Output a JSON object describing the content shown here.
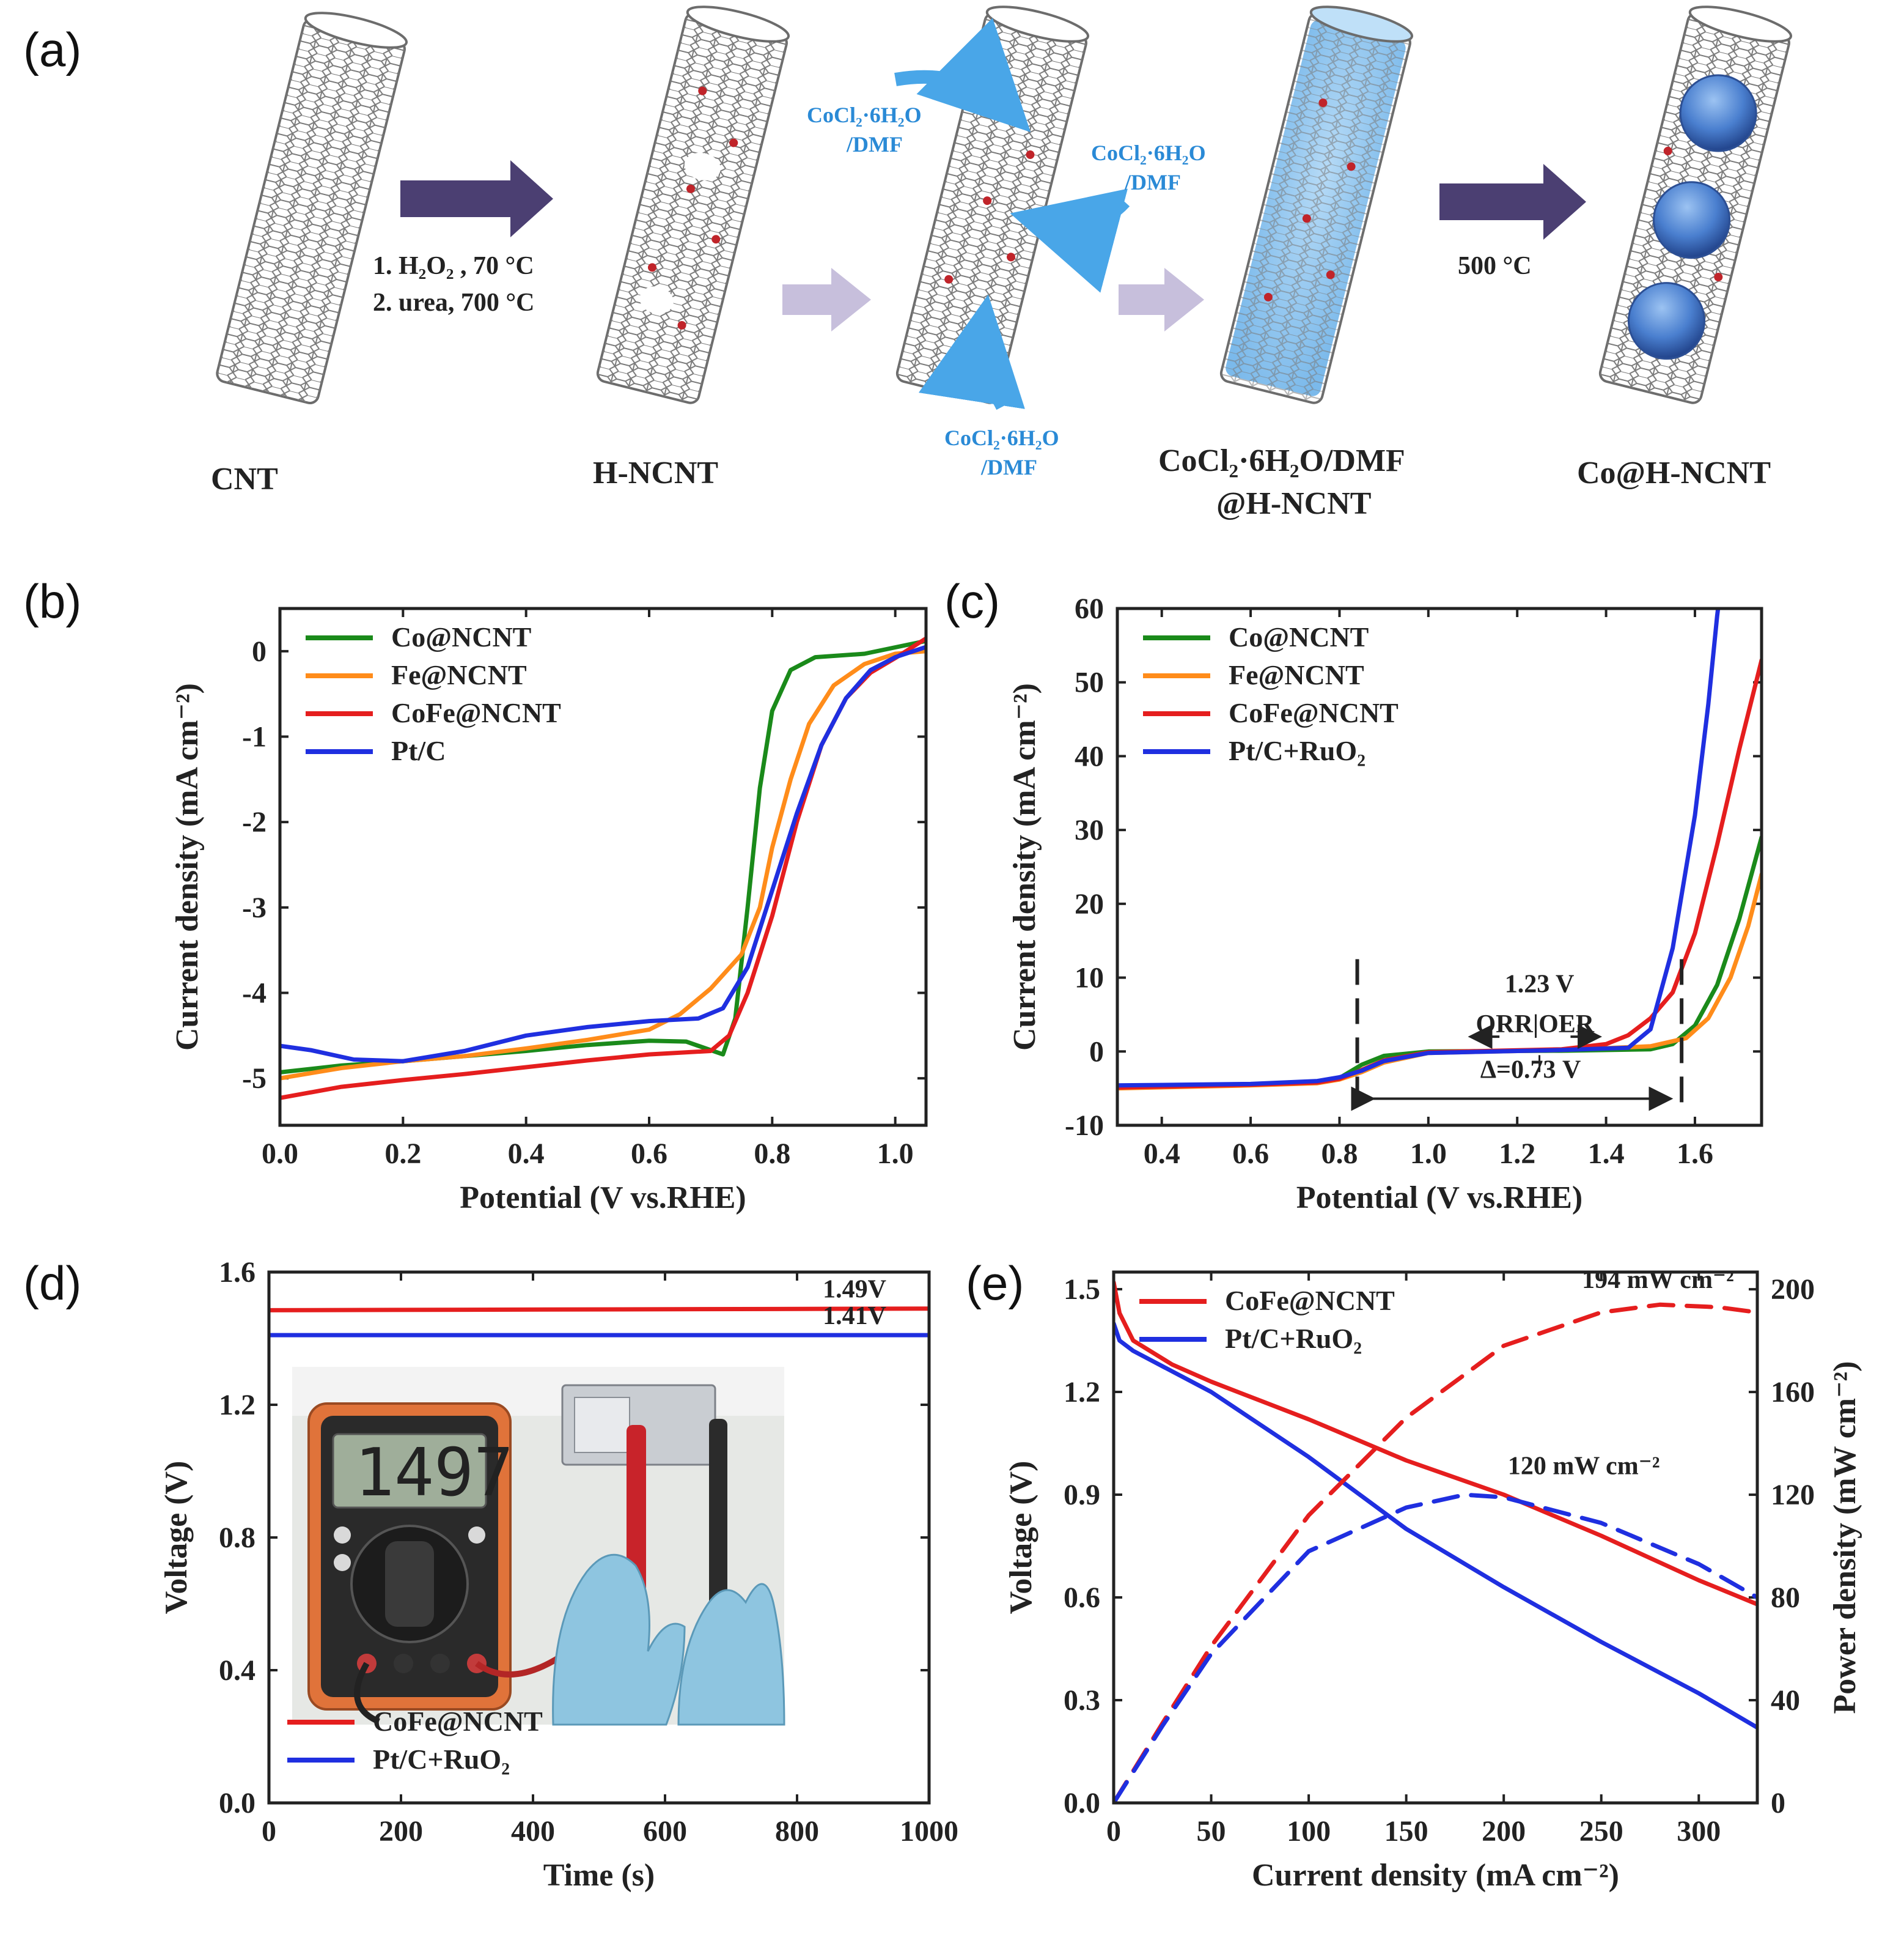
{
  "panels": {
    "a": {
      "label": "(a)"
    },
    "b": {
      "label": "(b)"
    },
    "c": {
      "label": "(c)"
    },
    "d": {
      "label": "(d)"
    },
    "e": {
      "label": "(e)"
    }
  },
  "schematic": {
    "stages": [
      "CNT",
      "H-NCNT",
      "CoCl₂·6H₂O/DMF",
      "@H-NCNT",
      "Co@H-NCNT"
    ],
    "step1_conditions": [
      "1. H₂O₂ , 70 °C",
      "2. urea, 700 °C"
    ],
    "step3_condition": "500 °C",
    "reagent_line1": "CoCl₂·6H₂O",
    "reagent_line2": "/DMF"
  },
  "photo": {
    "meter_reading": "1497"
  },
  "colors": {
    "green": "#1a8a1a",
    "orange": "#ff8c1a",
    "red": "#e51e1e",
    "blue": "#1f2fe0",
    "arrow_dark": "#4b3f72",
    "arrow_light": "#c7bfdc",
    "reagent_blue": "#2a8ad6"
  },
  "chart_data": [
    {
      "id": "b",
      "type": "line",
      "xlabel": "Potential (V vs.RHE)",
      "ylabel": "Current density (mA cm⁻²)",
      "xlim": [
        0,
        1.05
      ],
      "ylim": [
        -5.55,
        0.5
      ],
      "xticks": [
        0,
        0.2,
        0.4,
        0.6,
        0.8,
        1.0
      ],
      "xtick_labels": [
        "0.0",
        "0.2",
        "0.4",
        "0.6",
        "0.8",
        "1.0"
      ],
      "yticks": [
        0,
        -1,
        -2,
        -3,
        -4,
        -5
      ],
      "ytick_labels": [
        "0",
        "-1",
        "-2",
        "-3",
        "-4",
        "-5"
      ],
      "legend_position": "top-left",
      "series": [
        {
          "name": "Co@NCNT",
          "color": "#1a8a1a",
          "points": [
            [
              0,
              -4.93
            ],
            [
              0.1,
              -4.85
            ],
            [
              0.2,
              -4.8
            ],
            [
              0.3,
              -4.74
            ],
            [
              0.4,
              -4.68
            ],
            [
              0.5,
              -4.61
            ],
            [
              0.6,
              -4.56
            ],
            [
              0.66,
              -4.57
            ],
            [
              0.72,
              -4.72
            ],
            [
              0.74,
              -4.3
            ],
            [
              0.76,
              -3.0
            ],
            [
              0.78,
              -1.6
            ],
            [
              0.8,
              -0.7
            ],
            [
              0.83,
              -0.22
            ],
            [
              0.87,
              -0.07
            ],
            [
              0.95,
              -0.03
            ],
            [
              1.05,
              0.12
            ]
          ]
        },
        {
          "name": "Fe@NCNT",
          "color": "#ff8c1a",
          "points": [
            [
              0,
              -5.0
            ],
            [
              0.1,
              -4.88
            ],
            [
              0.2,
              -4.8
            ],
            [
              0.3,
              -4.74
            ],
            [
              0.4,
              -4.65
            ],
            [
              0.5,
              -4.55
            ],
            [
              0.6,
              -4.43
            ],
            [
              0.65,
              -4.25
            ],
            [
              0.7,
              -3.95
            ],
            [
              0.75,
              -3.55
            ],
            [
              0.78,
              -3.0
            ],
            [
              0.8,
              -2.3
            ],
            [
              0.83,
              -1.5
            ],
            [
              0.86,
              -0.85
            ],
            [
              0.9,
              -0.4
            ],
            [
              0.95,
              -0.15
            ],
            [
              1.0,
              -0.03
            ],
            [
              1.05,
              0.0
            ]
          ]
        },
        {
          "name": "CoFe@NCNT",
          "color": "#e51e1e",
          "points": [
            [
              0,
              -5.23
            ],
            [
              0.1,
              -5.1
            ],
            [
              0.2,
              -5.02
            ],
            [
              0.3,
              -4.95
            ],
            [
              0.4,
              -4.87
            ],
            [
              0.5,
              -4.79
            ],
            [
              0.6,
              -4.72
            ],
            [
              0.7,
              -4.68
            ],
            [
              0.73,
              -4.5
            ],
            [
              0.76,
              -4.0
            ],
            [
              0.8,
              -3.1
            ],
            [
              0.84,
              -2.0
            ],
            [
              0.88,
              -1.1
            ],
            [
              0.92,
              -0.55
            ],
            [
              0.96,
              -0.25
            ],
            [
              1.0,
              -0.08
            ],
            [
              1.05,
              0.15
            ]
          ]
        },
        {
          "name": "Pt/C",
          "color": "#1f2fe0",
          "points": [
            [
              0,
              -4.62
            ],
            [
              0.05,
              -4.67
            ],
            [
              0.12,
              -4.78
            ],
            [
              0.2,
              -4.8
            ],
            [
              0.3,
              -4.68
            ],
            [
              0.4,
              -4.5
            ],
            [
              0.5,
              -4.4
            ],
            [
              0.6,
              -4.33
            ],
            [
              0.68,
              -4.3
            ],
            [
              0.72,
              -4.18
            ],
            [
              0.76,
              -3.7
            ],
            [
              0.8,
              -2.8
            ],
            [
              0.84,
              -1.9
            ],
            [
              0.88,
              -1.1
            ],
            [
              0.92,
              -0.55
            ],
            [
              0.96,
              -0.22
            ],
            [
              1.0,
              -0.07
            ],
            [
              1.05,
              0.05
            ]
          ]
        }
      ]
    },
    {
      "id": "c",
      "type": "line",
      "xlabel": "Potential (V vs.RHE)",
      "ylabel": "Current density (mA cm⁻²)",
      "xlim": [
        0.3,
        1.75
      ],
      "ylim": [
        -10,
        60
      ],
      "xticks": [
        0.4,
        0.6,
        0.8,
        1.0,
        1.2,
        1.4,
        1.6
      ],
      "xtick_labels": [
        "0.4",
        "0.6",
        "0.8",
        "1.0",
        "1.2",
        "1.4",
        "1.6"
      ],
      "yticks": [
        -10,
        0,
        10,
        20,
        30,
        40,
        50,
        60
      ],
      "ytick_labels": [
        "-10",
        "0",
        "10",
        "20",
        "30",
        "40",
        "50",
        "60"
      ],
      "legend_position": "top-left",
      "annotations": {
        "gap_label": "Δ=0.73 V",
        "eq_potential": "1.23 V",
        "orr_oer": "ORR|OER",
        "dashed_x": [
          0.84,
          1.57
        ]
      },
      "series": [
        {
          "name": "Co@NCNT",
          "color": "#1a8a1a",
          "points": [
            [
              0.3,
              -4.8
            ],
            [
              0.6,
              -4.5
            ],
            [
              0.75,
              -4.2
            ],
            [
              0.8,
              -3.6
            ],
            [
              0.85,
              -1.8
            ],
            [
              0.9,
              -0.6
            ],
            [
              1.0,
              0
            ],
            [
              1.3,
              0.1
            ],
            [
              1.5,
              0.3
            ],
            [
              1.55,
              1.0
            ],
            [
              1.6,
              3.5
            ],
            [
              1.65,
              9
            ],
            [
              1.7,
              18
            ],
            [
              1.75,
              29
            ]
          ]
        },
        {
          "name": "Fe@NCNT",
          "color": "#ff8c1a",
          "points": [
            [
              0.3,
              -5.0
            ],
            [
              0.6,
              -4.6
            ],
            [
              0.75,
              -4.3
            ],
            [
              0.8,
              -3.8
            ],
            [
              0.85,
              -2.8
            ],
            [
              0.9,
              -1.5
            ],
            [
              1.0,
              -0.2
            ],
            [
              1.3,
              0.2
            ],
            [
              1.5,
              0.7
            ],
            [
              1.58,
              1.8
            ],
            [
              1.63,
              4.5
            ],
            [
              1.68,
              10
            ],
            [
              1.72,
              17
            ],
            [
              1.75,
              24
            ]
          ]
        },
        {
          "name": "CoFe@NCNT",
          "color": "#e51e1e",
          "points": [
            [
              0.3,
              -4.9
            ],
            [
              0.6,
              -4.5
            ],
            [
              0.75,
              -4.2
            ],
            [
              0.8,
              -3.7
            ],
            [
              0.85,
              -2.5
            ],
            [
              0.9,
              -1.2
            ],
            [
              1.0,
              -0.1
            ],
            [
              1.3,
              0.3
            ],
            [
              1.4,
              1.0
            ],
            [
              1.45,
              2.2
            ],
            [
              1.5,
              4.5
            ],
            [
              1.55,
              8
            ],
            [
              1.6,
              16
            ],
            [
              1.65,
              28
            ],
            [
              1.7,
              41
            ],
            [
              1.75,
              53
            ]
          ]
        },
        {
          "name": "Pt/C+RuO₂",
          "color": "#1f2fe0",
          "points": [
            [
              0.3,
              -4.6
            ],
            [
              0.6,
              -4.4
            ],
            [
              0.75,
              -4.0
            ],
            [
              0.8,
              -3.5
            ],
            [
              0.85,
              -2.6
            ],
            [
              0.9,
              -1.3
            ],
            [
              1.0,
              -0.2
            ],
            [
              1.3,
              0.2
            ],
            [
              1.45,
              0.5
            ],
            [
              1.5,
              3.0
            ],
            [
              1.55,
              14
            ],
            [
              1.6,
              32
            ],
            [
              1.63,
              47
            ],
            [
              1.65,
              59
            ],
            [
              1.652,
              60
            ]
          ]
        }
      ]
    },
    {
      "id": "d",
      "type": "line",
      "xlabel": "Time (s)",
      "ylabel": "Voltage (V)",
      "xlim": [
        0,
        1000
      ],
      "ylim": [
        0,
        1.6
      ],
      "xticks": [
        0,
        200,
        400,
        600,
        800,
        1000
      ],
      "xtick_labels": [
        "0",
        "200",
        "400",
        "600",
        "800",
        "1000"
      ],
      "yticks": [
        0,
        0.4,
        0.8,
        1.2,
        1.6
      ],
      "ytick_labels": [
        "0.0",
        "0.4",
        "0.8",
        "1.2",
        "1.6"
      ],
      "legend_position": "bottom-left",
      "series": [
        {
          "name": "CoFe@NCNT",
          "color": "#e51e1e",
          "end_label": "1.49V",
          "points": [
            [
              0,
              1.485
            ],
            [
              1000,
              1.49
            ]
          ]
        },
        {
          "name": "Pt/C+RuO₂",
          "color": "#1f2fe0",
          "end_label": "1.41V",
          "points": [
            [
              0,
              1.41
            ],
            [
              1000,
              1.41
            ]
          ]
        }
      ]
    },
    {
      "id": "e",
      "type": "line",
      "xlabel": "Current density (mA cm⁻²)",
      "ylabel": "Voltage (V)",
      "y2label": "Power density (mW cm⁻²)",
      "xlim": [
        0,
        330
      ],
      "ylim": [
        0,
        1.55
      ],
      "y2lim": [
        0,
        206.7
      ],
      "xticks": [
        0,
        50,
        100,
        150,
        200,
        250,
        300
      ],
      "xtick_labels": [
        "0",
        "50",
        "100",
        "150",
        "200",
        "250",
        "300"
      ],
      "yticks": [
        0,
        0.3,
        0.6,
        0.9,
        1.2,
        1.5
      ],
      "ytick_labels": [
        "0.0",
        "0.3",
        "0.6",
        "0.9",
        "1.2",
        "1.5"
      ],
      "y2ticks": [
        0,
        40,
        80,
        120,
        160,
        200
      ],
      "y2tick_labels": [
        "0",
        "40",
        "80",
        "120",
        "160",
        "200"
      ],
      "legend_position": "top-left",
      "annotations": {
        "peak_red": "194 mW cm⁻²",
        "peak_blue": "120 mW cm⁻²"
      },
      "series": [
        {
          "name": "CoFe@NCNT",
          "color": "#e51e1e",
          "style": "solid",
          "points": [
            [
              0,
              1.52
            ],
            [
              3,
              1.43
            ],
            [
              10,
              1.35
            ],
            [
              30,
              1.28
            ],
            [
              50,
              1.23
            ],
            [
              100,
              1.12
            ],
            [
              150,
              1.0
            ],
            [
              200,
              0.9
            ],
            [
              250,
              0.78
            ],
            [
              300,
              0.65
            ],
            [
              330,
              0.58
            ]
          ]
        },
        {
          "name": "Pt/C+RuO₂",
          "color": "#1f2fe0",
          "style": "solid",
          "points": [
            [
              0,
              1.4
            ],
            [
              3,
              1.35
            ],
            [
              10,
              1.32
            ],
            [
              50,
              1.2
            ],
            [
              100,
              1.01
            ],
            [
              150,
              0.8
            ],
            [
              200,
              0.63
            ],
            [
              250,
              0.47
            ],
            [
              300,
              0.32
            ],
            [
              330,
              0.22
            ]
          ]
        },
        {
          "name": "CoFe@NCNT power",
          "color": "#e51e1e",
          "style": "dashed",
          "axis": "y2",
          "points": [
            [
              0,
              0
            ],
            [
              25,
              31
            ],
            [
              50,
              61
            ],
            [
              100,
              112
            ],
            [
              150,
              150
            ],
            [
              200,
              178
            ],
            [
              250,
              191
            ],
            [
              280,
              194
            ],
            [
              310,
              193
            ],
            [
              330,
              191
            ]
          ]
        },
        {
          "name": "Pt/C+RuO₂ power",
          "color": "#1f2fe0",
          "style": "dashed",
          "axis": "y2",
          "points": [
            [
              0,
              0
            ],
            [
              25,
              30
            ],
            [
              50,
              58
            ],
            [
              100,
              98
            ],
            [
              150,
              115
            ],
            [
              180,
              120
            ],
            [
              200,
              119
            ],
            [
              250,
              109
            ],
            [
              300,
              93
            ],
            [
              330,
              80
            ]
          ]
        }
      ]
    }
  ]
}
